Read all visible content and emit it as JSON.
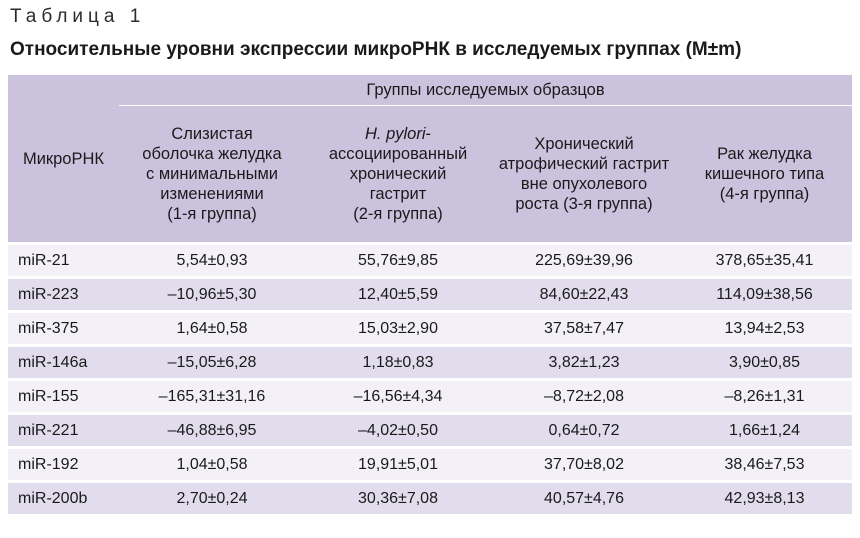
{
  "caption": "Таблица 1",
  "title": "Относительные уровни экспрессии микроРНК в исследуемых группах (M±m)",
  "table": {
    "corner_label": "МикроРНК",
    "groups_label": "Группы исследуемых образцов",
    "columns": [
      {
        "lines": [
          "Слизистая",
          "оболочка желудка",
          "с минимальными",
          "изменениями",
          "(1-я группа)"
        ]
      },
      {
        "italic": "H. pylori",
        "lines": [
          "-",
          "ассоциированный",
          "хронический",
          "гастрит",
          "(2-я группа)"
        ]
      },
      {
        "lines": [
          "Хронический",
          "атрофический гастрит",
          "вне опухолевого",
          "роста (3-я группа)"
        ]
      },
      {
        "lines": [
          "Рак желудка",
          "кишечного типа",
          "(4-я группа)"
        ]
      }
    ],
    "rows": [
      {
        "name": "miR-21",
        "values": [
          "5,54±0,93",
          "55,76±9,85",
          "225,69±39,96",
          "378,65±35,41"
        ]
      },
      {
        "name": "miR-223",
        "values": [
          "–10,96±5,30",
          "12,40±5,59",
          "84,60±22,43",
          "114,09±38,56"
        ]
      },
      {
        "name": "miR-375",
        "values": [
          "1,64±0,58",
          "15,03±2,90",
          "37,58±7,47",
          "13,94±2,53"
        ]
      },
      {
        "name": "miR-146a",
        "values": [
          "–15,05±6,28",
          "1,18±0,83",
          "3,82±1,23",
          "3,90±0,85"
        ]
      },
      {
        "name": "miR-155",
        "values": [
          "–165,31±31,16",
          "–16,56±4,34",
          "–8,72±2,08",
          "–8,26±1,31"
        ]
      },
      {
        "name": "miR-221",
        "values": [
          "–46,88±6,95",
          "–4,02±0,50",
          "0,64±0,72",
          "1,66±1,24"
        ]
      },
      {
        "name": "miR-192",
        "values": [
          "1,04±0,58",
          "19,91±5,01",
          "37,70±8,02",
          "38,46±7,53"
        ]
      },
      {
        "name": "miR-200b",
        "values": [
          "2,70±0,24",
          "30,36±7,08",
          "40,57±4,76",
          "42,93±8,13"
        ]
      }
    ]
  }
}
